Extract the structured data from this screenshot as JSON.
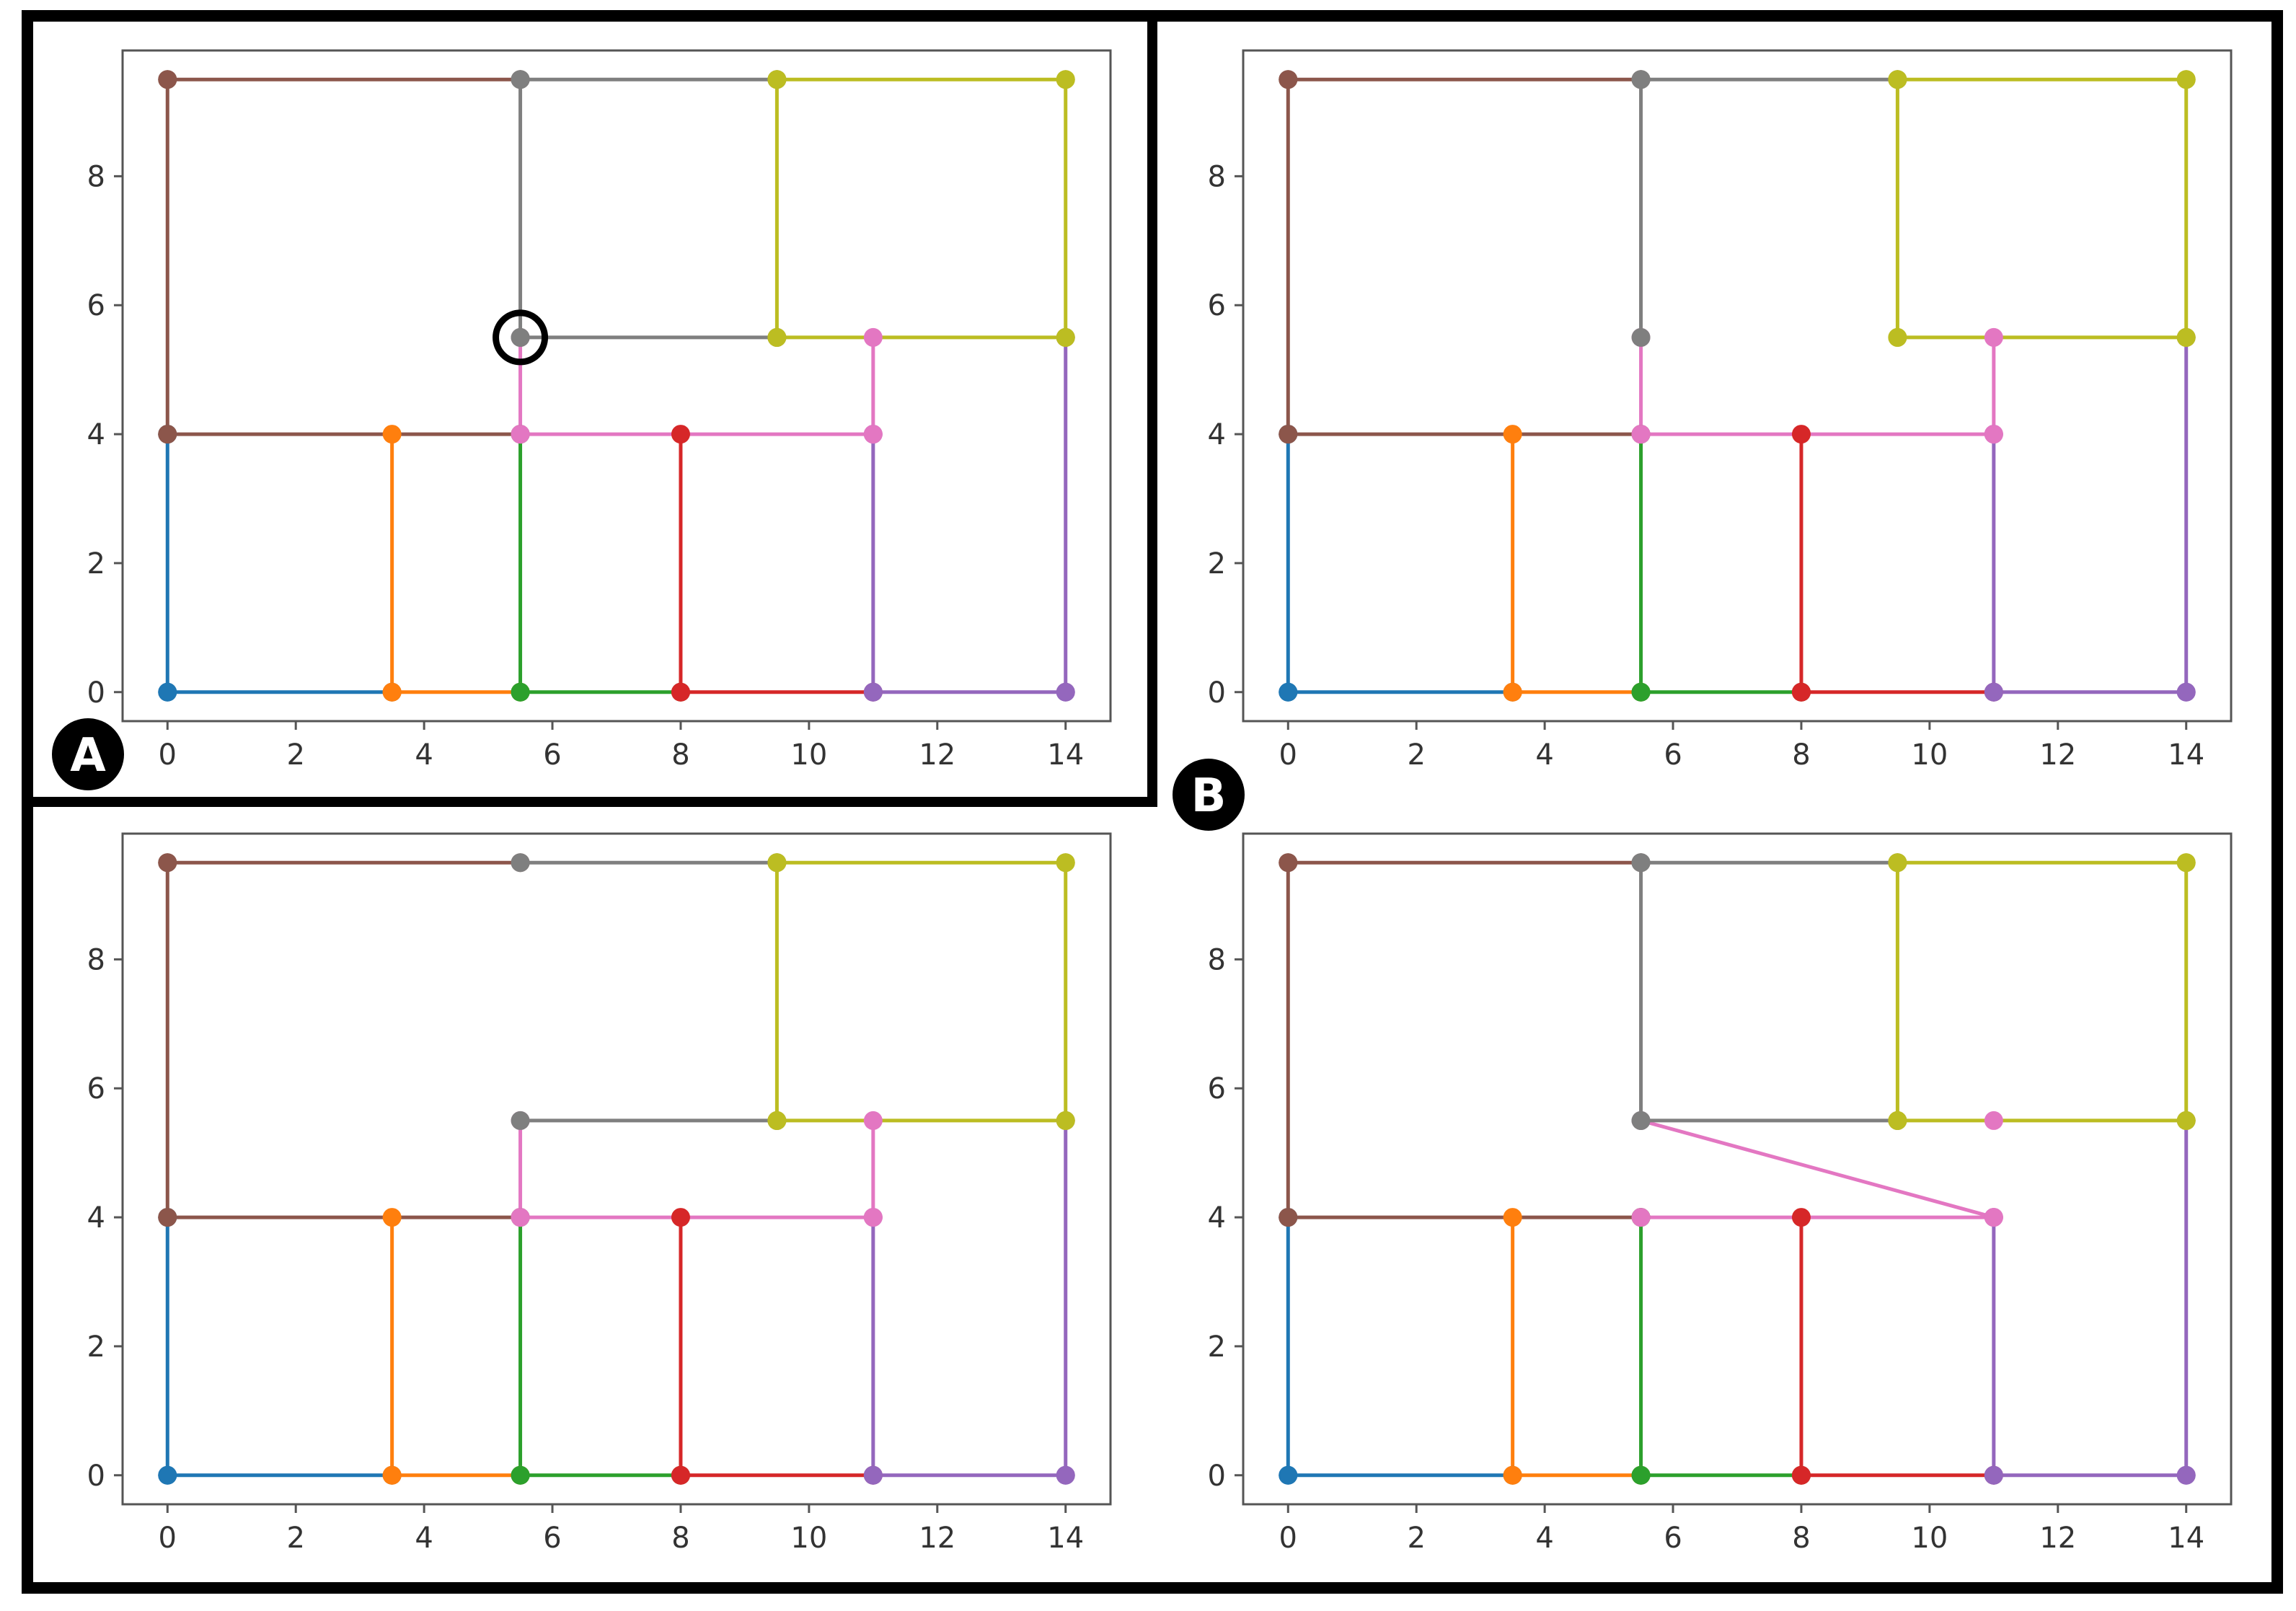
{
  "labels": {
    "a": "A",
    "b": "B"
  },
  "colors": {
    "blue": "#1f77b4",
    "orange": "#ff7f0e",
    "green": "#2ca02c",
    "red": "#d62728",
    "purple": "#9467bd",
    "brown": "#8c564b",
    "pink": "#e377c2",
    "gray": "#7f7f7f",
    "olive": "#bcbd22",
    "frame": "#000000"
  },
  "chart_data": [
    {
      "type": "line",
      "panel": "top-left",
      "label": "A",
      "xlim": [
        -0.7,
        14.7
      ],
      "ylim": [
        -0.45,
        9.95
      ],
      "xticks": [
        0,
        2,
        4,
        6,
        8,
        10,
        12,
        14
      ],
      "yticks": [
        0,
        2,
        4,
        6,
        8
      ],
      "highlight": [
        5.5,
        5.5
      ],
      "series": [
        {
          "color": "blue",
          "points": [
            [
              0,
              0
            ],
            [
              3.5,
              0
            ],
            [
              0,
              0
            ],
            [
              0,
              4
            ]
          ]
        },
        {
          "color": "orange",
          "points": [
            [
              3.5,
              0
            ],
            [
              5.5,
              0
            ],
            [
              3.5,
              0
            ],
            [
              3.5,
              4
            ]
          ]
        },
        {
          "color": "green",
          "points": [
            [
              5.5,
              0
            ],
            [
              8,
              0
            ],
            [
              5.5,
              0
            ],
            [
              5.5,
              4
            ]
          ]
        },
        {
          "color": "red",
          "points": [
            [
              8,
              0
            ],
            [
              11,
              0
            ],
            [
              8,
              0
            ],
            [
              8,
              4
            ]
          ]
        },
        {
          "color": "purple",
          "points": [
            [
              11,
              0
            ],
            [
              14,
              0
            ],
            [
              11,
              0
            ],
            [
              11,
              4
            ],
            [
              14,
              0
            ],
            [
              14,
              5.5
            ]
          ]
        },
        {
          "color": "brown",
          "points": [
            [
              0,
              4
            ],
            [
              5.5,
              4
            ],
            [
              0,
              4
            ],
            [
              0,
              9.5
            ],
            [
              0,
              9.5
            ],
            [
              5.5,
              9.5
            ]
          ]
        },
        {
          "color": "pink",
          "points": [
            [
              5.5,
              4
            ],
            [
              11,
              4
            ],
            [
              5.5,
              4
            ],
            [
              5.5,
              5.5
            ],
            [
              11,
              4
            ],
            [
              11,
              5.5
            ]
          ]
        },
        {
          "color": "gray",
          "points": [
            [
              5.5,
              9.5
            ],
            [
              9.5,
              9.5
            ],
            [
              5.5,
              9.5
            ],
            [
              5.5,
              5.5
            ],
            [
              5.5,
              5.5
            ],
            [
              9.5,
              5.5
            ]
          ]
        },
        {
          "color": "olive",
          "points": [
            [
              9.5,
              9.5
            ],
            [
              14,
              9.5
            ],
            [
              9.5,
              9.5
            ],
            [
              9.5,
              5.5
            ],
            [
              14,
              9.5
            ],
            [
              14,
              5.5
            ],
            [
              9.5,
              5.5
            ],
            [
              14,
              5.5
            ]
          ]
        }
      ]
    },
    {
      "type": "line",
      "panel": "top-right",
      "label": "B",
      "xlim": [
        -0.7,
        14.7
      ],
      "ylim": [
        -0.45,
        9.95
      ],
      "xticks": [
        0,
        2,
        4,
        6,
        8,
        10,
        12,
        14
      ],
      "yticks": [
        0,
        2,
        4,
        6,
        8
      ],
      "series": [
        {
          "color": "blue",
          "points": [
            [
              0,
              0
            ],
            [
              3.5,
              0
            ],
            [
              0,
              0
            ],
            [
              0,
              4
            ]
          ]
        },
        {
          "color": "orange",
          "points": [
            [
              3.5,
              0
            ],
            [
              5.5,
              0
            ],
            [
              3.5,
              0
            ],
            [
              3.5,
              4
            ]
          ]
        },
        {
          "color": "green",
          "points": [
            [
              5.5,
              0
            ],
            [
              8,
              0
            ],
            [
              5.5,
              0
            ],
            [
              5.5,
              4
            ]
          ]
        },
        {
          "color": "red",
          "points": [
            [
              8,
              0
            ],
            [
              11,
              0
            ],
            [
              8,
              0
            ],
            [
              8,
              4
            ]
          ]
        },
        {
          "color": "purple",
          "points": [
            [
              11,
              0
            ],
            [
              14,
              0
            ],
            [
              11,
              0
            ],
            [
              11,
              4
            ],
            [
              14,
              0
            ],
            [
              14,
              5.5
            ]
          ]
        },
        {
          "color": "brown",
          "points": [
            [
              0,
              4
            ],
            [
              5.5,
              4
            ],
            [
              0,
              4
            ],
            [
              0,
              9.5
            ],
            [
              0,
              9.5
            ],
            [
              5.5,
              9.5
            ]
          ]
        },
        {
          "color": "pink",
          "points": [
            [
              5.5,
              4
            ],
            [
              11,
              4
            ],
            [
              5.5,
              4
            ],
            [
              5.5,
              5.5
            ],
            [
              11,
              4
            ],
            [
              11,
              5.5
            ]
          ]
        },
        {
          "color": "gray",
          "points": [
            [
              5.5,
              9.5
            ],
            [
              9.5,
              9.5
            ],
            [
              5.5,
              9.5
            ],
            [
              5.5,
              5.5
            ]
          ]
        },
        {
          "color": "olive",
          "points": [
            [
              9.5,
              9.5
            ],
            [
              14,
              9.5
            ],
            [
              9.5,
              9.5
            ],
            [
              9.5,
              5.5
            ],
            [
              14,
              9.5
            ],
            [
              14,
              5.5
            ],
            [
              9.5,
              5.5
            ],
            [
              14,
              5.5
            ]
          ]
        }
      ]
    },
    {
      "type": "line",
      "panel": "bottom-left",
      "xlim": [
        -0.7,
        14.7
      ],
      "ylim": [
        -0.45,
        9.95
      ],
      "xticks": [
        0,
        2,
        4,
        6,
        8,
        10,
        12,
        14
      ],
      "yticks": [
        0,
        2,
        4,
        6,
        8
      ],
      "series": [
        {
          "color": "blue",
          "points": [
            [
              0,
              0
            ],
            [
              3.5,
              0
            ],
            [
              0,
              0
            ],
            [
              0,
              4
            ]
          ]
        },
        {
          "color": "orange",
          "points": [
            [
              3.5,
              0
            ],
            [
              5.5,
              0
            ],
            [
              3.5,
              0
            ],
            [
              3.5,
              4
            ]
          ]
        },
        {
          "color": "green",
          "points": [
            [
              5.5,
              0
            ],
            [
              8,
              0
            ],
            [
              5.5,
              0
            ],
            [
              5.5,
              4
            ]
          ]
        },
        {
          "color": "red",
          "points": [
            [
              8,
              0
            ],
            [
              11,
              0
            ],
            [
              8,
              0
            ],
            [
              8,
              4
            ]
          ]
        },
        {
          "color": "purple",
          "points": [
            [
              11,
              0
            ],
            [
              14,
              0
            ],
            [
              11,
              0
            ],
            [
              11,
              4
            ],
            [
              14,
              0
            ],
            [
              14,
              5.5
            ]
          ]
        },
        {
          "color": "brown",
          "points": [
            [
              0,
              4
            ],
            [
              5.5,
              4
            ],
            [
              0,
              4
            ],
            [
              0,
              9.5
            ],
            [
              0,
              9.5
            ],
            [
              5.5,
              9.5
            ]
          ]
        },
        {
          "color": "pink",
          "points": [
            [
              5.5,
              4
            ],
            [
              11,
              4
            ],
            [
              5.5,
              4
            ],
            [
              5.5,
              5.5
            ],
            [
              11,
              4
            ],
            [
              11,
              5.5
            ]
          ]
        },
        {
          "color": "gray",
          "points": [
            [
              5.5,
              9.5
            ],
            [
              9.5,
              9.5
            ],
            [
              5.5,
              5.5
            ],
            [
              9.5,
              5.5
            ]
          ]
        },
        {
          "color": "olive",
          "points": [
            [
              9.5,
              9.5
            ],
            [
              14,
              9.5
            ],
            [
              9.5,
              9.5
            ],
            [
              9.5,
              5.5
            ],
            [
              14,
              9.5
            ],
            [
              14,
              5.5
            ],
            [
              9.5,
              5.5
            ],
            [
              14,
              5.5
            ]
          ]
        }
      ]
    },
    {
      "type": "line",
      "panel": "bottom-right",
      "xlim": [
        -0.7,
        14.7
      ],
      "ylim": [
        -0.45,
        9.95
      ],
      "xticks": [
        0,
        2,
        4,
        6,
        8,
        10,
        12,
        14
      ],
      "yticks": [
        0,
        2,
        4,
        6,
        8
      ],
      "series": [
        {
          "color": "blue",
          "points": [
            [
              0,
              0
            ],
            [
              3.5,
              0
            ],
            [
              0,
              0
            ],
            [
              0,
              4
            ]
          ]
        },
        {
          "color": "orange",
          "points": [
            [
              3.5,
              0
            ],
            [
              5.5,
              0
            ],
            [
              3.5,
              0
            ],
            [
              3.5,
              4
            ]
          ]
        },
        {
          "color": "green",
          "points": [
            [
              5.5,
              0
            ],
            [
              8,
              0
            ],
            [
              5.5,
              0
            ],
            [
              5.5,
              4
            ]
          ]
        },
        {
          "color": "red",
          "points": [
            [
              8,
              0
            ],
            [
              11,
              0
            ],
            [
              8,
              0
            ],
            [
              8,
              4
            ]
          ]
        },
        {
          "color": "purple",
          "points": [
            [
              11,
              0
            ],
            [
              14,
              0
            ],
            [
              11,
              0
            ],
            [
              11,
              4
            ],
            [
              14,
              0
            ],
            [
              14,
              5.5
            ]
          ]
        },
        {
          "color": "brown",
          "points": [
            [
              0,
              4
            ],
            [
              5.5,
              4
            ],
            [
              0,
              4
            ],
            [
              0,
              9.5
            ],
            [
              0,
              9.5
            ],
            [
              5.5,
              9.5
            ]
          ]
        },
        {
          "color": "pink",
          "points": [
            [
              5.5,
              4
            ],
            [
              11,
              4
            ],
            [
              5.5,
              5.5
            ],
            [
              11,
              4
            ],
            [
              11,
              5.5
            ]
          ]
        },
        {
          "color": "gray",
          "points": [
            [
              5.5,
              9.5
            ],
            [
              9.5,
              9.5
            ],
            [
              5.5,
              9.5
            ],
            [
              5.5,
              5.5
            ],
            [
              5.5,
              5.5
            ],
            [
              9.5,
              5.5
            ]
          ]
        },
        {
          "color": "olive",
          "points": [
            [
              9.5,
              9.5
            ],
            [
              14,
              9.5
            ],
            [
              9.5,
              9.5
            ],
            [
              9.5,
              5.5
            ],
            [
              14,
              9.5
            ],
            [
              14,
              5.5
            ],
            [
              9.5,
              5.5
            ],
            [
              14,
              5.5
            ]
          ]
        }
      ]
    }
  ]
}
